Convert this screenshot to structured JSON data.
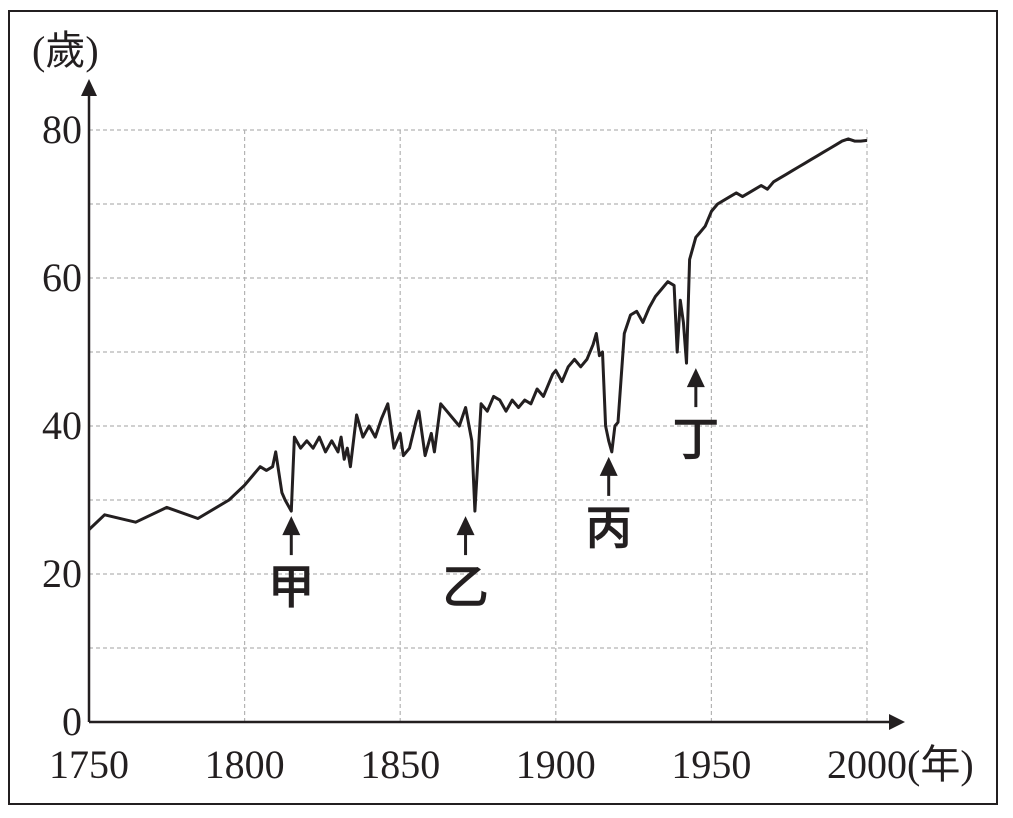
{
  "chart_data": {
    "type": "line",
    "title": "",
    "xlabel": "",
    "ylabel": "",
    "x_unit": "(年)",
    "y_unit": "(歲)",
    "xlim": [
      1750,
      2000
    ],
    "ylim": [
      0,
      80
    ],
    "x_ticks": [
      "1750",
      "1800",
      "1850",
      "1900",
      "1950",
      "2000"
    ],
    "y_ticks": [
      "0",
      "20",
      "40",
      "60",
      "80"
    ],
    "grid": true,
    "legend": "none",
    "colors": {
      "line": "#231f20",
      "grid": "#b4b4b4",
      "axis": "#231f20"
    },
    "series": [
      {
        "x": [
          1750,
          1755,
          1765,
          1775,
          1785,
          1795,
          1800,
          1805,
          1807,
          1809,
          1810,
          1812,
          1813,
          1815,
          1816,
          1818,
          1820,
          1822,
          1824,
          1826,
          1828,
          1830,
          1831,
          1832,
          1833,
          1834,
          1836,
          1838,
          1840,
          1842,
          1844,
          1846,
          1848,
          1850,
          1851,
          1853,
          1855,
          1856,
          1858,
          1860,
          1861,
          1863,
          1865,
          1867,
          1869,
          1871,
          1873,
          1874,
          1876,
          1878,
          1880,
          1882,
          1884,
          1886,
          1888,
          1890,
          1892,
          1894,
          1896,
          1898,
          1899,
          1900,
          1902,
          1904,
          1906,
          1908,
          1910,
          1912,
          1913,
          1914,
          1915,
          1916,
          1917,
          1918,
          1919,
          1920,
          1922,
          1924,
          1926,
          1928,
          1930,
          1932,
          1934,
          1935,
          1936,
          1938,
          1939,
          1940,
          1941,
          1942,
          1943,
          1945,
          1946,
          1948,
          1950,
          1952,
          1954,
          1956,
          1958,
          1960,
          1962,
          1964,
          1966,
          1968,
          1970,
          1972,
          1974,
          1976,
          1978,
          1980,
          1982,
          1984,
          1986,
          1988,
          1990,
          1992,
          1994,
          1996,
          1998,
          2000
        ],
        "y": [
          26,
          28,
          27,
          29,
          27.5,
          30,
          32,
          34.5,
          34,
          34.5,
          36.5,
          31,
          30,
          28.5,
          38.5,
          37,
          38,
          37,
          38.5,
          36.5,
          38,
          36.5,
          38.5,
          35.5,
          37,
          34.5,
          41.5,
          38.5,
          40,
          38.5,
          41,
          43,
          37,
          39,
          36,
          37,
          40.5,
          42,
          36,
          39,
          36.5,
          43,
          42,
          41,
          40,
          42.5,
          38,
          28.5,
          43,
          42,
          44,
          43.5,
          42,
          43.5,
          42.5,
          43.5,
          43,
          45,
          44,
          46,
          47,
          47.5,
          46,
          48,
          49,
          48,
          49,
          51,
          52.5,
          49.5,
          50,
          40,
          38,
          36.5,
          40,
          40.5,
          52.5,
          55,
          55.5,
          54,
          56,
          57.5,
          58.5,
          59,
          59.5,
          59,
          50,
          57,
          54,
          48.5,
          62.5,
          65.5,
          66,
          67,
          69,
          70,
          70.5,
          71,
          71.5,
          71,
          71.5,
          72,
          72.5,
          72,
          73,
          73.5,
          74,
          74.5,
          75,
          75.5,
          76,
          76.5,
          77,
          77.5,
          78,
          78.5,
          78.8,
          78.5,
          78.5,
          78.6
        ]
      }
    ],
    "annotations": [
      {
        "label": "甲",
        "x": 1815,
        "y": 28.5
      },
      {
        "label": "乙",
        "x": 1871,
        "y": 28.5
      },
      {
        "label": "丙",
        "x": 1917,
        "y": 36.5
      },
      {
        "label": "丁",
        "x": 1945,
        "y": 48.5
      }
    ]
  }
}
